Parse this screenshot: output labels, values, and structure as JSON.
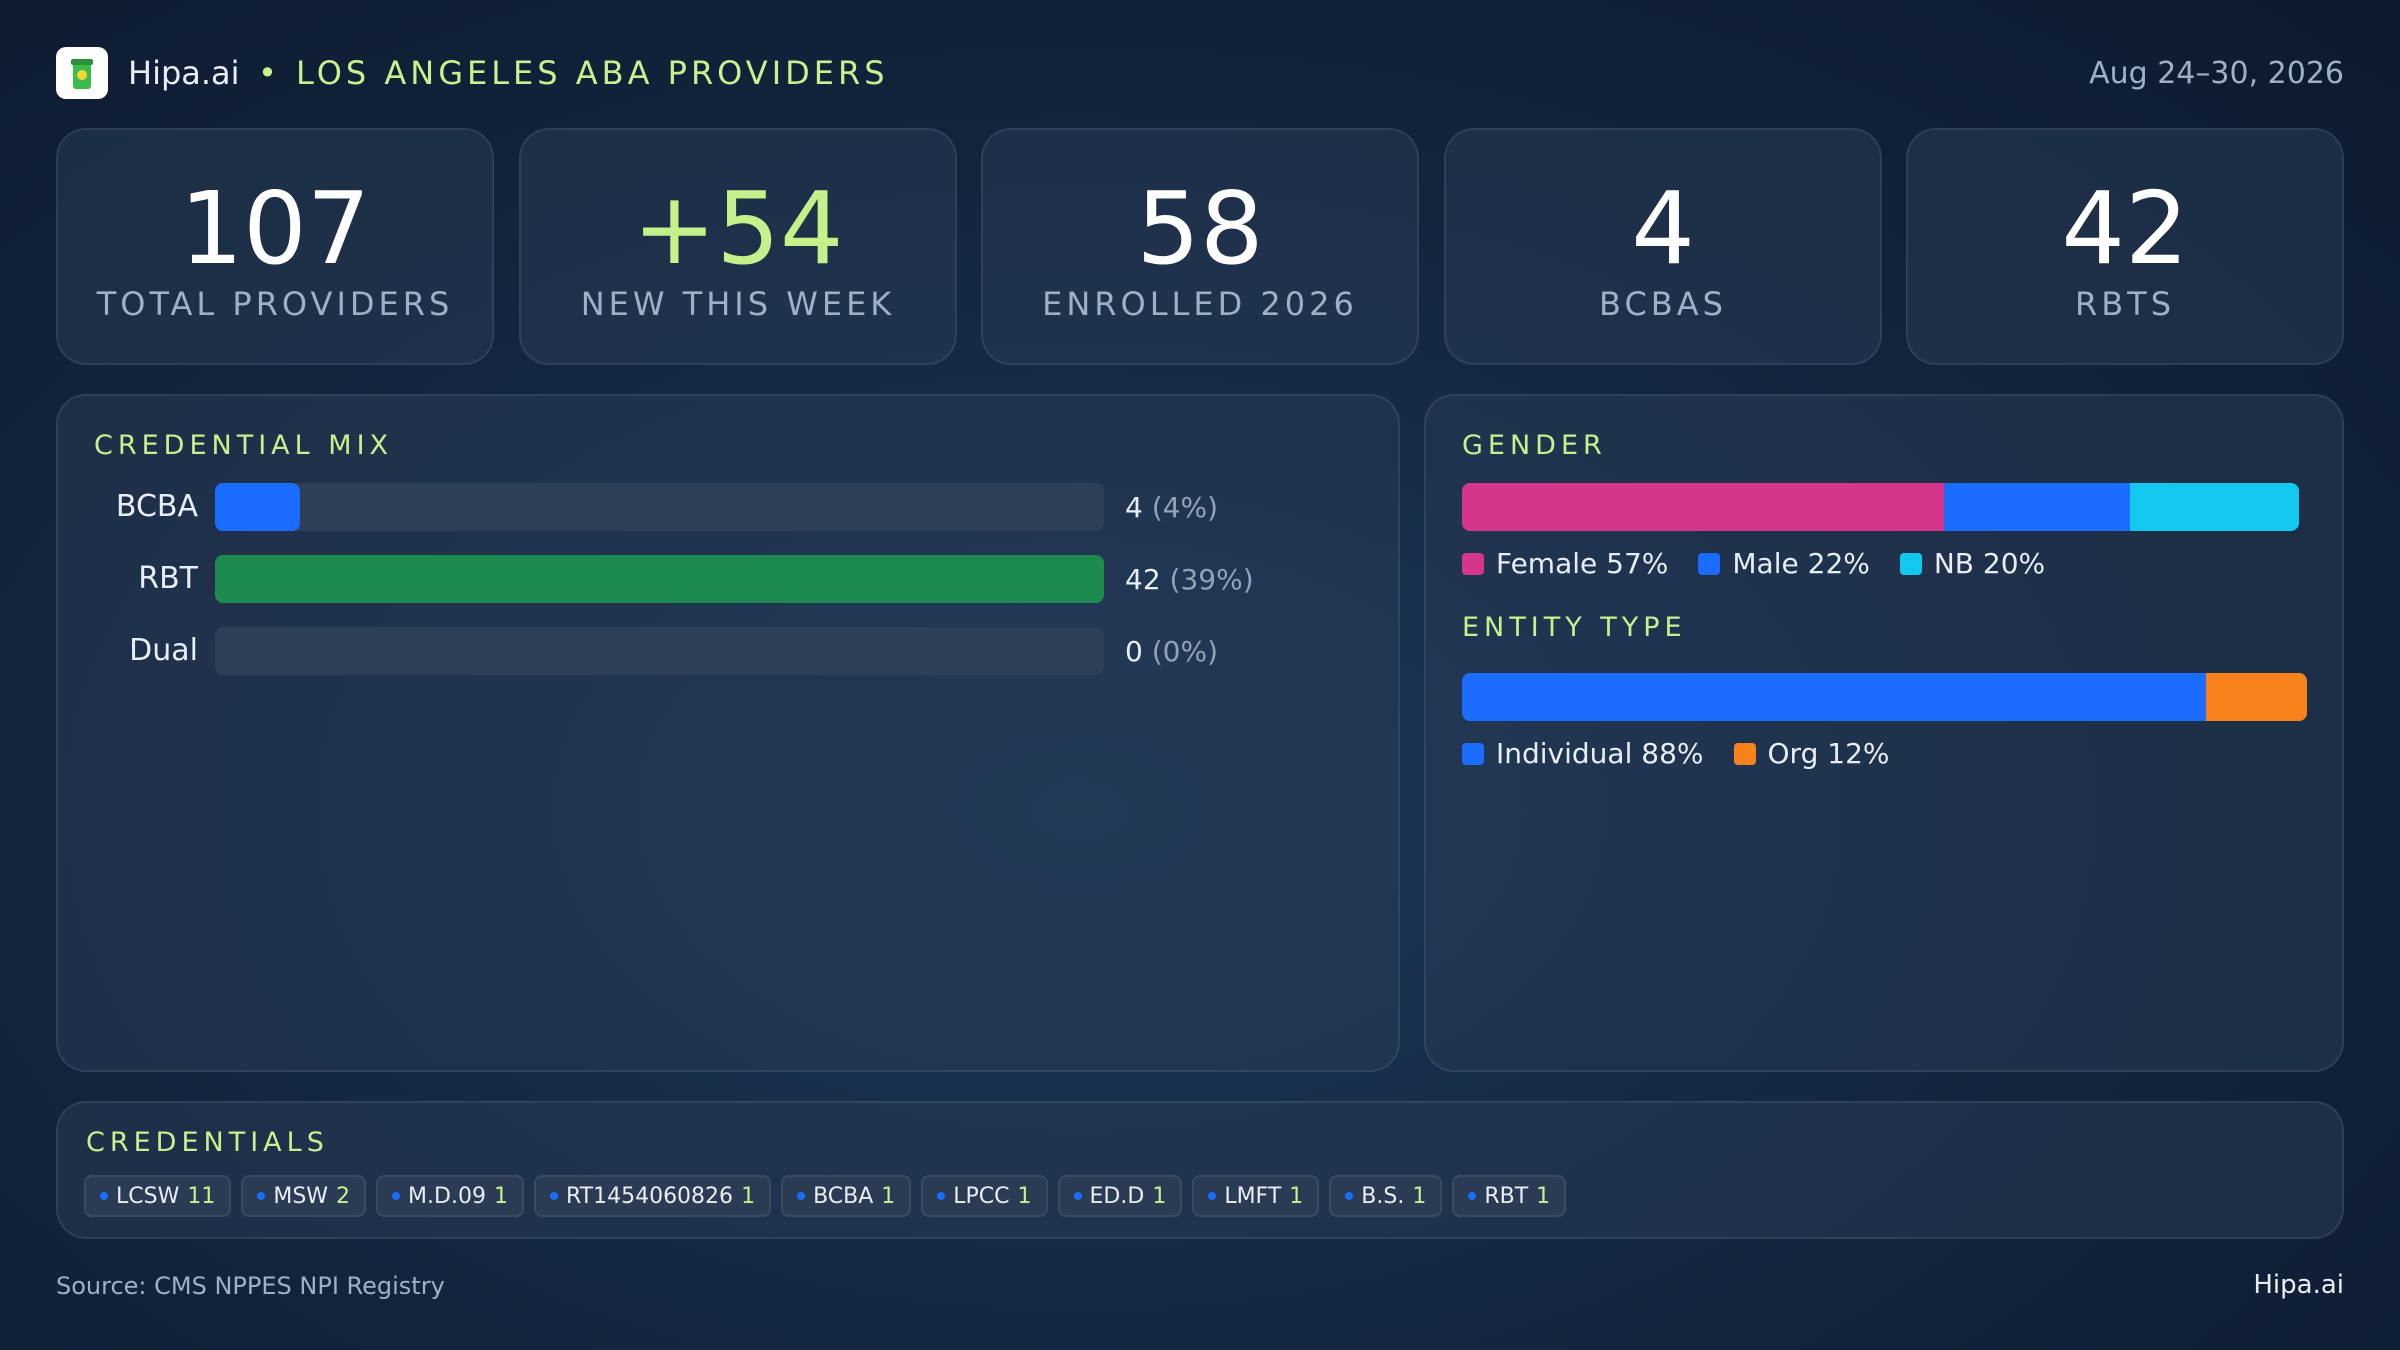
{
  "header": {
    "brand": "Hipa.ai",
    "title": "LOS ANGELES ABA PROVIDERS",
    "date": "Aug 24–30, 2026"
  },
  "kpis": [
    {
      "value": "107",
      "label": "TOTAL PROVIDERS"
    },
    {
      "value": "+54",
      "label": "NEW THIS WEEK"
    },
    {
      "value": "58",
      "label": "ENROLLED 2026"
    },
    {
      "value": "4",
      "label": "BCBAS"
    },
    {
      "value": "42",
      "label": "RBTS"
    }
  ],
  "credential_mix": {
    "title": "CREDENTIAL MIX",
    "categories": [
      "BCBA",
      "RBT",
      "Dual"
    ],
    "values": [
      4,
      42,
      0
    ],
    "percent_labels": [
      "(4%)",
      "(39%)",
      "(0%)"
    ],
    "colors": [
      "#1a6dff",
      "#1d8a50",
      "#1d8a50"
    ],
    "xlim": [
      0,
      42
    ]
  },
  "gender": {
    "title": "GENDER",
    "categories": [
      "Female",
      "Male",
      "NB"
    ],
    "values": [
      57,
      22,
      20
    ],
    "value_labels": [
      "57%",
      "22%",
      "20%"
    ],
    "colors": [
      "#d6368a",
      "#1a6dff",
      "#12c8ef"
    ],
    "xlim": [
      0,
      100
    ]
  },
  "entity_type": {
    "title": "ENTITY TYPE",
    "categories": [
      "Individual",
      "Org"
    ],
    "values": [
      88,
      12
    ],
    "value_labels": [
      "88%",
      "12%"
    ],
    "colors": [
      "#1a6dff",
      "#f7821b"
    ],
    "xlim": [
      0,
      100
    ]
  },
  "credentials": {
    "title": "CREDENTIALS",
    "items": [
      {
        "name": "LCSW",
        "count": 11
      },
      {
        "name": "MSW",
        "count": 2
      },
      {
        "name": "M.D.09",
        "count": 1
      },
      {
        "name": "RT1454060826",
        "count": 1
      },
      {
        "name": "BCBA",
        "count": 1
      },
      {
        "name": "LPCC",
        "count": 1
      },
      {
        "name": "ED.D",
        "count": 1
      },
      {
        "name": "LMFT",
        "count": 1
      },
      {
        "name": "B.S.",
        "count": 1
      },
      {
        "name": "RBT",
        "count": 1
      }
    ]
  },
  "footer": {
    "source": "Source: CMS NPPES NPI Registry",
    "brand": "Hipa.ai"
  }
}
